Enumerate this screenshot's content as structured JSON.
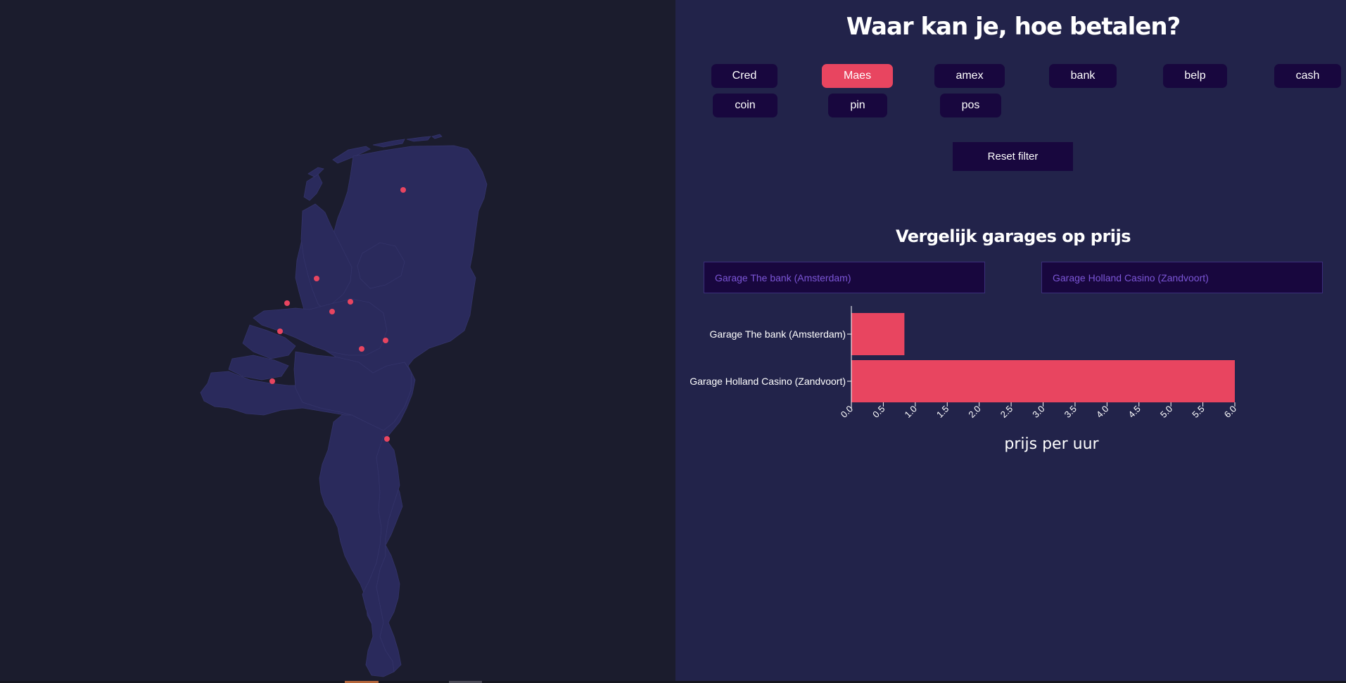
{
  "page": {
    "title": "Waar kan je, hoe betalen?",
    "reset_label": "Reset filter",
    "compare_title": "Vergelijk garages op prijs"
  },
  "filters": [
    {
      "label": "Cred",
      "active": false
    },
    {
      "label": "Maes",
      "active": true
    },
    {
      "label": "amex",
      "active": false
    },
    {
      "label": "bank",
      "active": false
    },
    {
      "label": "belp",
      "active": false
    },
    {
      "label": "cash",
      "active": false
    },
    {
      "label": "coin",
      "active": false
    },
    {
      "label": "pin",
      "active": false
    },
    {
      "label": "pos",
      "active": false
    }
  ],
  "compare": {
    "select_left": "Garage The bank (Amsterdam)",
    "select_right": "Garage Holland Casino (Zandvoort)"
  },
  "map": {
    "land_color": "#2a2a5c",
    "marker_color": "#e84560",
    "marker_count": 10
  },
  "colors": {
    "accent": "#e84560",
    "button_bg": "#18073e",
    "panel_bg": "#22234a",
    "page_bg": "#1b1c2d"
  },
  "chart_data": {
    "type": "bar",
    "orientation": "horizontal",
    "categories": [
      "Garage The bank (Amsterdam)",
      "Garage Holland Casino (Zandvoort)"
    ],
    "values": [
      0.83,
      6.0
    ],
    "xlabel": "prijs per uur",
    "ylabel": "",
    "xlim": [
      0,
      6
    ],
    "xticks": [
      "0.0",
      "0.5",
      "1.0",
      "1.5",
      "2.0",
      "2.5",
      "3.0",
      "3.5",
      "4.0",
      "4.5",
      "5.0",
      "5.5",
      "6.0"
    ],
    "bar_color": "#e84560",
    "grid": false
  }
}
